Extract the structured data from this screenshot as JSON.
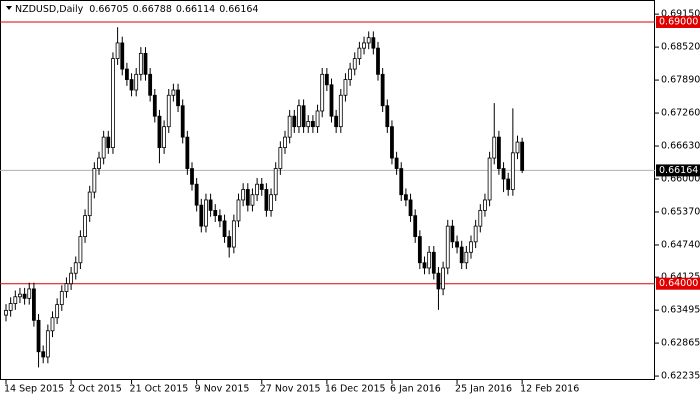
{
  "chart_data": {
    "type": "candlestick",
    "symbol": "NZDUSD,Daily",
    "categories": [
      "14 Sep 2015",
      null,
      null,
      null,
      null,
      null,
      null,
      null,
      null,
      null,
      null,
      null,
      null,
      null,
      "2 Oct 2015",
      null,
      null,
      null,
      null,
      null,
      null,
      null,
      null,
      null,
      null,
      null,
      null,
      "21 Oct 2015",
      null,
      null,
      null,
      null,
      null,
      null,
      null,
      null,
      null,
      null,
      null,
      null,
      null,
      "9 Nov 2015",
      null,
      null,
      null,
      null,
      null,
      null,
      null,
      null,
      null,
      null,
      null,
      null,
      null,
      "27 Nov 2015",
      null,
      null,
      null,
      null,
      null,
      null,
      null,
      null,
      null,
      null,
      null,
      null,
      null,
      "16 Dec 2015",
      null,
      null,
      null,
      null,
      null,
      null,
      null,
      null,
      null,
      null,
      null,
      null,
      null,
      "6 Jan 2016",
      null,
      null,
      null,
      null,
      null,
      null,
      null,
      null,
      null,
      null,
      null,
      null,
      null,
      "25 Jan 2016",
      null,
      null,
      null,
      null,
      null,
      null,
      null,
      null,
      null,
      null,
      null,
      null,
      null,
      "12 Feb 2016"
    ],
    "open": [
      0.634,
      0.6349,
      0.6362,
      0.6375,
      0.638,
      0.6372,
      0.639,
      0.633,
      0.627,
      0.626,
      0.631,
      0.6335,
      0.636,
      0.6385,
      0.64,
      0.642,
      0.644,
      0.649,
      0.653,
      0.6575,
      0.662,
      0.664,
      0.668,
      0.666,
      0.683,
      0.686,
      0.681,
      0.679,
      0.677,
      0.68,
      0.684,
      0.68,
      0.676,
      0.672,
      0.666,
      0.67,
      0.676,
      0.677,
      0.674,
      0.668,
      0.662,
      0.659,
      0.655,
      0.651,
      0.656,
      0.654,
      0.653,
      0.652,
      0.649,
      0.647,
      0.652,
      0.656,
      0.658,
      0.655,
      0.657,
      0.659,
      0.658,
      0.654,
      0.657,
      0.662,
      0.666,
      0.668,
      0.672,
      0.67,
      0.674,
      0.67,
      0.671,
      0.67,
      0.673,
      0.68,
      0.678,
      0.672,
      0.67,
      0.676,
      0.679,
      0.681,
      0.683,
      0.685,
      0.686,
      0.687,
      0.685,
      0.68,
      0.674,
      0.67,
      0.664,
      0.662,
      0.657,
      0.656,
      0.653,
      0.649,
      0.644,
      0.643,
      0.646,
      0.642,
      0.639,
      0.643,
      0.651,
      0.648,
      0.647,
      0.644,
      0.646,
      0.648,
      0.651,
      0.654,
      0.656,
      0.664,
      0.668,
      0.662,
      0.66,
      0.658,
      0.665,
      0.66705
    ],
    "high": [
      0.6361,
      0.6374,
      0.6387,
      0.6392,
      0.6392,
      0.6402,
      0.6402,
      0.6342,
      0.6282,
      0.6322,
      0.6347,
      0.6372,
      0.6397,
      0.6412,
      0.6432,
      0.6452,
      0.6502,
      0.6542,
      0.6587,
      0.6632,
      0.6652,
      0.6692,
      0.6692,
      0.6842,
      0.689,
      0.6872,
      0.6822,
      0.6802,
      0.6812,
      0.6852,
      0.6852,
      0.6812,
      0.6772,
      0.6732,
      0.6712,
      0.6772,
      0.6782,
      0.6782,
      0.6752,
      0.6692,
      0.6632,
      0.6602,
      0.6562,
      0.6572,
      0.6572,
      0.6552,
      0.6542,
      0.6532,
      0.6502,
      0.6532,
      0.6572,
      0.6592,
      0.6592,
      0.6582,
      0.6602,
      0.6602,
      0.6592,
      0.6582,
      0.6632,
      0.6672,
      0.6692,
      0.6732,
      0.6732,
      0.6752,
      0.6752,
      0.6722,
      0.6722,
      0.6742,
      0.6812,
      0.6812,
      0.6792,
      0.6732,
      0.6772,
      0.6802,
      0.6822,
      0.6842,
      0.6862,
      0.6872,
      0.6882,
      0.6882,
      0.6862,
      0.6812,
      0.6752,
      0.6712,
      0.6652,
      0.6632,
      0.6582,
      0.6572,
      0.6542,
      0.6502,
      0.6452,
      0.6472,
      0.6472,
      0.6432,
      0.6442,
      0.6522,
      0.6522,
      0.6492,
      0.6482,
      0.6472,
      0.6492,
      0.6522,
      0.6552,
      0.6572,
      0.6652,
      0.6745,
      0.6692,
      0.6632,
      0.6612,
      0.6735,
      0.6683,
      0.66788
    ],
    "low": [
      0.6328,
      0.6337,
      0.635,
      0.6363,
      0.636,
      0.636,
      0.6318,
      0.624,
      0.6248,
      0.6248,
      0.6298,
      0.6323,
      0.6348,
      0.6373,
      0.6388,
      0.6408,
      0.6428,
      0.6478,
      0.6518,
      0.6563,
      0.6608,
      0.6628,
      0.6648,
      0.6648,
      0.6818,
      0.6798,
      0.6778,
      0.6758,
      0.6758,
      0.6788,
      0.6788,
      0.6748,
      0.6708,
      0.663,
      0.6648,
      0.6688,
      0.6748,
      0.6728,
      0.6668,
      0.6608,
      0.6578,
      0.6538,
      0.6498,
      0.6498,
      0.6528,
      0.6518,
      0.6508,
      0.6478,
      0.645,
      0.6458,
      0.6508,
      0.6548,
      0.6538,
      0.6538,
      0.6558,
      0.6568,
      0.6528,
      0.6528,
      0.6558,
      0.6608,
      0.6648,
      0.6668,
      0.6688,
      0.6688,
      0.6688,
      0.6688,
      0.6688,
      0.6688,
      0.6718,
      0.6768,
      0.6708,
      0.6688,
      0.6688,
      0.6748,
      0.6778,
      0.6798,
      0.6818,
      0.6838,
      0.6848,
      0.6838,
      0.6788,
      0.6728,
      0.6688,
      0.6628,
      0.6608,
      0.6558,
      0.6548,
      0.6518,
      0.6478,
      0.6428,
      0.6418,
      0.6418,
      0.6408,
      0.635,
      0.6378,
      0.6418,
      0.6468,
      0.6458,
      0.6428,
      0.6428,
      0.6448,
      0.6468,
      0.6498,
      0.6528,
      0.6548,
      0.6628,
      0.6608,
      0.6575,
      0.6568,
      0.6568,
      0.6638,
      0.66114
    ],
    "close": [
      0.6349,
      0.6362,
      0.6375,
      0.638,
      0.6372,
      0.639,
      0.633,
      0.627,
      0.626,
      0.631,
      0.6335,
      0.636,
      0.6385,
      0.64,
      0.642,
      0.644,
      0.649,
      0.653,
      0.6575,
      0.662,
      0.664,
      0.668,
      0.666,
      0.683,
      0.686,
      0.681,
      0.679,
      0.677,
      0.68,
      0.684,
      0.68,
      0.676,
      0.672,
      0.666,
      0.67,
      0.676,
      0.677,
      0.674,
      0.668,
      0.662,
      0.659,
      0.655,
      0.651,
      0.656,
      0.654,
      0.653,
      0.652,
      0.649,
      0.647,
      0.652,
      0.656,
      0.658,
      0.655,
      0.657,
      0.659,
      0.658,
      0.654,
      0.657,
      0.662,
      0.666,
      0.668,
      0.672,
      0.67,
      0.674,
      0.67,
      0.671,
      0.67,
      0.673,
      0.68,
      0.678,
      0.672,
      0.67,
      0.676,
      0.679,
      0.681,
      0.683,
      0.685,
      0.686,
      0.687,
      0.685,
      0.68,
      0.674,
      0.67,
      0.664,
      0.662,
      0.657,
      0.656,
      0.653,
      0.649,
      0.644,
      0.643,
      0.646,
      0.642,
      0.639,
      0.643,
      0.651,
      0.648,
      0.647,
      0.644,
      0.646,
      0.648,
      0.651,
      0.654,
      0.656,
      0.664,
      0.668,
      0.662,
      0.66,
      0.658,
      0.665,
      0.66705,
      0.66164
    ],
    "bull_color": "#ffffff",
    "bear_color": "#000000",
    "outline_color": "#000000",
    "ylim": [
      0.6216,
      0.6942
    ],
    "yticks": [
      {
        "value": 0.6915,
        "label": "0.69150"
      },
      {
        "value": 0.6852,
        "label": "0.68520"
      },
      {
        "value": 0.6789,
        "label": "0.67890"
      },
      {
        "value": 0.6726,
        "label": "0.67260"
      },
      {
        "value": 0.6663,
        "label": "0.66630"
      },
      {
        "value": 0.66,
        "label": "0.66000"
      },
      {
        "value": 0.6537,
        "label": "0.65370"
      },
      {
        "value": 0.6474,
        "label": "0.64740"
      },
      {
        "value": 0.64125,
        "label": "0.64125"
      },
      {
        "value": 0.63495,
        "label": "0.63495"
      },
      {
        "value": 0.62865,
        "label": "0.62865"
      },
      {
        "value": 0.62235,
        "label": "0.62235"
      }
    ],
    "hlines": [
      {
        "value": 0.69,
        "label": "0.69000",
        "color": "#e00000"
      },
      {
        "value": 0.64,
        "label": "0.64000",
        "color": "#e00000"
      }
    ],
    "price_line_color": "#b0b0b0"
  }
}
